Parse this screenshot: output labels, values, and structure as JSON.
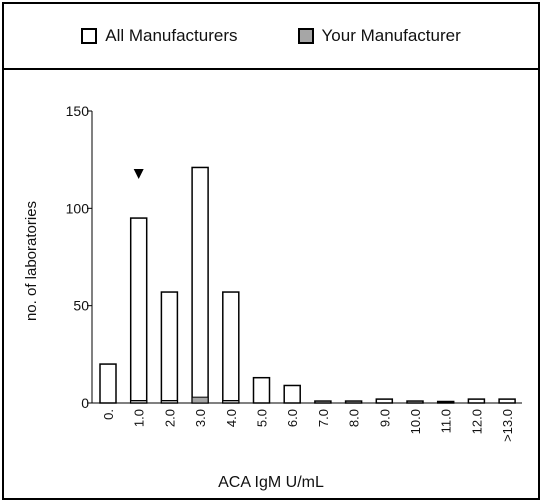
{
  "legend": {
    "all_label": "All Manufacturers",
    "yours_label": "Your Manufacturer"
  },
  "colors": {
    "all_fill": "#ffffff",
    "yours_fill": "#a6a6a6",
    "stroke": "#000000"
  },
  "chart_data": {
    "type": "bar",
    "xlabel": "ACA IgM U/mL",
    "ylabel": "no. of laboratories",
    "ylim": [
      0,
      150
    ],
    "yticks": [
      0,
      50,
      100,
      150
    ],
    "categories": [
      "0.",
      "1.0",
      "2.0",
      "3.0",
      "4.0",
      "5.0",
      "6.0",
      "7.0",
      "8.0",
      "9.0",
      "10.0",
      "11.0",
      "12.0",
      ">13.0"
    ],
    "series": [
      {
        "name": "All Manufacturers",
        "values": [
          20,
          95,
          57,
          121,
          57,
          13,
          9,
          1,
          1,
          2,
          1,
          0,
          2,
          2
        ]
      },
      {
        "name": "Your Manufacturer",
        "values": [
          0,
          1,
          1,
          3,
          1,
          0,
          0,
          0,
          0,
          0,
          0,
          0,
          0,
          0
        ]
      }
    ],
    "marker_category": "1.0"
  }
}
